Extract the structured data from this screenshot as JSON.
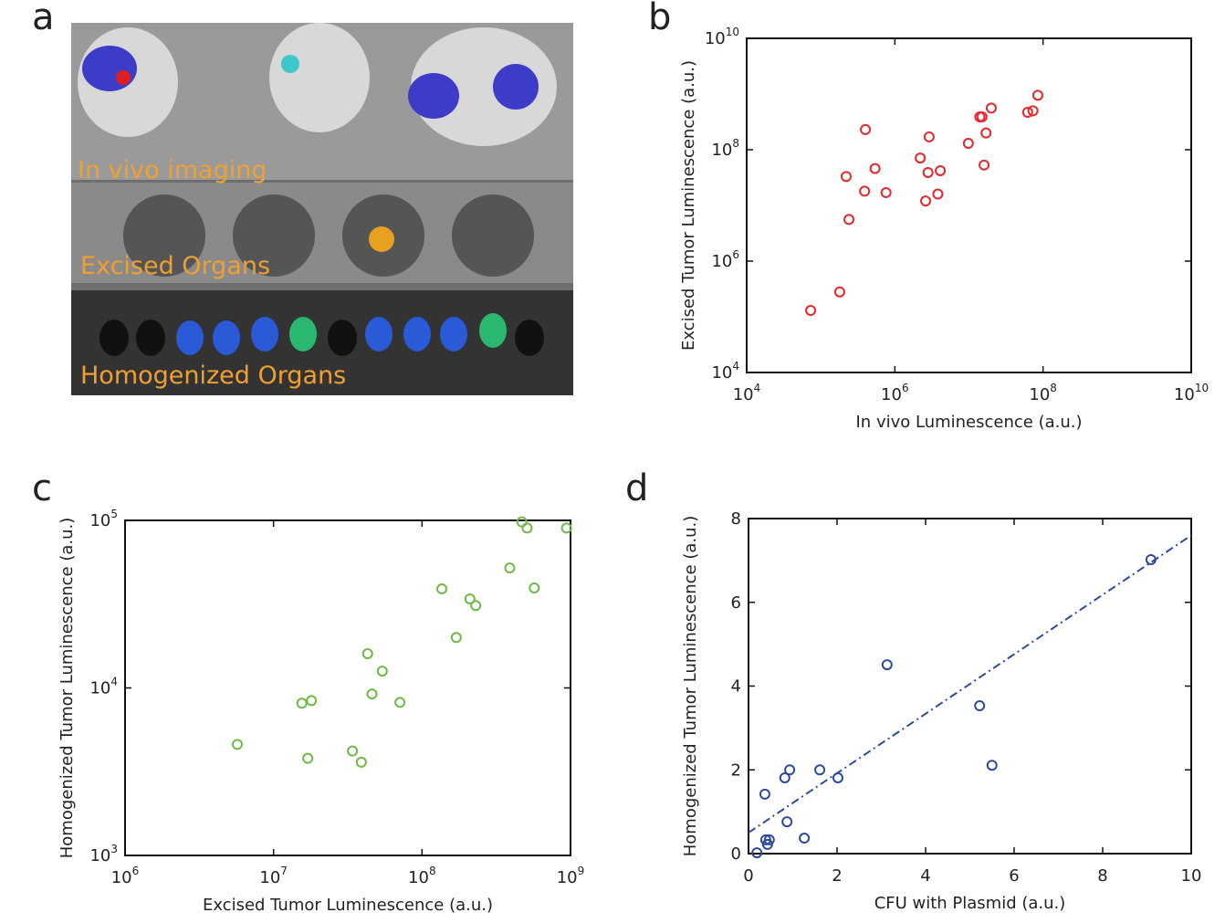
{
  "image_panel": {
    "label": "a",
    "annotations": [
      "In vivo imaging",
      "Excised Organs",
      "Homogenized Organs"
    ]
  },
  "chart_data": [
    {
      "type": "scatter",
      "panel_label": "b",
      "x_label": "In vivo Luminescence (a.u.)",
      "y_label": "Excised Tumor Luminescence (a.u.)",
      "xlog": true,
      "ylog": true,
      "xlim": [
        10000,
        10000000000
      ],
      "ylim": [
        10000,
        10000000000
      ],
      "xticks": [
        {
          "value": 10000,
          "label": "10^4"
        },
        {
          "value": 1000000,
          "label": "10^6"
        },
        {
          "value": 100000000,
          "label": "10^8"
        },
        {
          "value": 10000000000,
          "label": "10^10"
        }
      ],
      "yticks": [
        {
          "value": 10000,
          "label": "10^4"
        },
        {
          "value": 1000000,
          "label": "10^6"
        },
        {
          "value": 100000000,
          "label": "10^8"
        },
        {
          "value": 10000000000,
          "label": "10^10"
        }
      ],
      "color": "#e8262b",
      "x": [
        73000,
        180000,
        240000,
        220000,
        400000,
        390000,
        540000,
        760000,
        2200000,
        2600000,
        2900000,
        2800000,
        3800000,
        4100000,
        9800000,
        14000000,
        15000000,
        16000000,
        17000000,
        20000000,
        62000000,
        73000000,
        85000000
      ],
      "values": [
        130000,
        280000,
        5600000,
        33000000,
        230000000,
        18000000,
        46000000,
        17000000,
        71000000,
        12000000,
        170000000,
        39000000,
        16000000,
        42000000,
        130000000,
        390000000,
        390000000,
        53000000,
        200000000,
        560000000,
        470000000,
        500000000,
        950000000
      ]
    },
    {
      "type": "scatter",
      "panel_label": "c",
      "x_label": "Excised Tumor Luminescence (a.u.)",
      "y_label": "Homogenized Tumor Luminescence (a.u.)",
      "xlog": true,
      "ylog": true,
      "xlim": [
        1000000,
        1000000000
      ],
      "ylim": [
        1000,
        100000
      ],
      "xticks": [
        {
          "value": 1000000,
          "label": "10^6"
        },
        {
          "value": 10000000,
          "label": "10^7"
        },
        {
          "value": 100000000,
          "label": "10^8"
        },
        {
          "value": 1000000000,
          "label": "10^9"
        }
      ],
      "yticks": [
        {
          "value": 1000,
          "label": "10^3"
        },
        {
          "value": 10000,
          "label": "10^4"
        },
        {
          "value": 100000,
          "label": "10^5"
        }
      ],
      "color": "#6dbb45",
      "x": [
        5700000,
        15500000,
        18000000,
        17000000,
        34000000,
        39000000,
        43000000,
        46000000,
        54000000,
        71000000,
        136000000,
        170000000,
        210000000,
        230000000,
        390000000,
        470000000,
        510000000,
        570000000,
        940000000
      ],
      "values": [
        4600,
        8100,
        8400,
        3800,
        4200,
        3600,
        16000,
        9200,
        12600,
        8200,
        39000,
        20000,
        34000,
        31000,
        52000,
        98000,
        90000,
        39500,
        90000
      ]
    },
    {
      "type": "scatter",
      "panel_label": "d",
      "x_label": "CFU with Plasmid (a.u.)",
      "y_label": "Homogenized Tumor Luminescence (a.u.)",
      "xlog": false,
      "ylog": false,
      "xlim": [
        0,
        10
      ],
      "ylim": [
        0,
        8
      ],
      "xticks": [
        0,
        2,
        4,
        6,
        8,
        10
      ],
      "yticks": [
        0,
        2,
        4,
        6,
        8
      ],
      "color": "#2e4a9e",
      "x": [
        0.19,
        0.37,
        0.39,
        0.43,
        0.47,
        0.82,
        0.87,
        0.93,
        1.26,
        1.61,
        2.02,
        3.13,
        5.22,
        5.5,
        9.09
      ],
      "values": [
        0.02,
        1.42,
        0.33,
        0.22,
        0.33,
        1.81,
        0.76,
        2.0,
        0.37,
        2.0,
        1.81,
        4.51,
        3.53,
        2.11,
        7.02
      ],
      "fit": {
        "x": [
          0,
          10
        ],
        "y": [
          0.5,
          7.6
        ]
      }
    }
  ]
}
